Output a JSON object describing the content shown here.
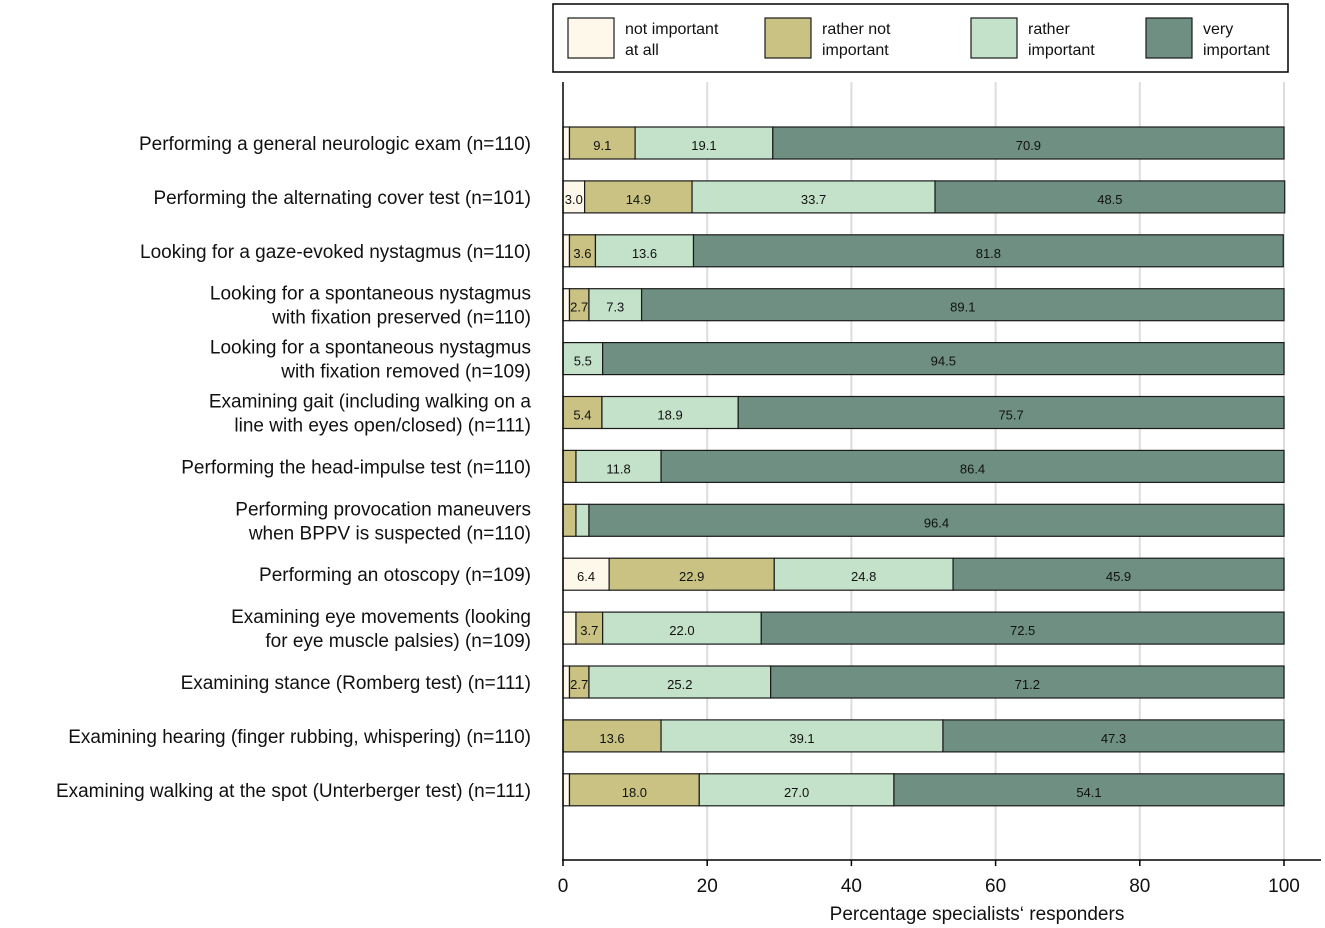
{
  "chart_data": {
    "type": "bar",
    "orientation": "horizontal-stacked",
    "xlabel": "Percentage specialists‘ responders",
    "xlim": [
      0,
      100
    ],
    "xticks": [
      0,
      20,
      40,
      60,
      80,
      100
    ],
    "grid": true,
    "legend_position": "top",
    "series": [
      {
        "name": "not important at all",
        "legend_lines": [
          "not important",
          "at all"
        ],
        "color": "#fdf8ea"
      },
      {
        "name": "rather not important",
        "legend_lines": [
          "rather not",
          "important"
        ],
        "color": "#c9c283"
      },
      {
        "name": "rather important",
        "legend_lines": [
          "rather",
          "important"
        ],
        "color": "#c3e2c9"
      },
      {
        "name": "very important",
        "legend_lines": [
          "very",
          "important"
        ],
        "color": "#6e8f82"
      }
    ],
    "categories": [
      {
        "lines": [
          "Performing a general neurologic exam (n=110)"
        ],
        "values": [
          0.9,
          9.1,
          19.1,
          70.9
        ],
        "labels": [
          "",
          "9.1",
          "19.1",
          "70.9"
        ]
      },
      {
        "lines": [
          "Performing the alternating cover test (n=101)"
        ],
        "values": [
          3.0,
          14.9,
          33.7,
          48.5
        ],
        "labels": [
          "3.0",
          "14.9",
          "33.7",
          "48.5"
        ]
      },
      {
        "lines": [
          "Looking for a gaze-evoked nystagmus (n=110)"
        ],
        "values": [
          0.9,
          3.6,
          13.6,
          81.8
        ],
        "labels": [
          "",
          "3.6",
          "13.6",
          "81.8"
        ]
      },
      {
        "lines": [
          "Looking for a spontaneous nystagmus ",
          "with fixation preserved (n=110)"
        ],
        "values": [
          0.9,
          2.7,
          7.3,
          89.1
        ],
        "labels": [
          "",
          "2.7",
          "7.3",
          "89.1"
        ]
      },
      {
        "lines": [
          "Looking for a spontaneous nystagmus",
          "with fixation removed (n=109)"
        ],
        "values": [
          0,
          0,
          5.5,
          94.5
        ],
        "labels": [
          "",
          "",
          "5.5",
          "94.5"
        ]
      },
      {
        "lines": [
          "Examining gait (including walking on a",
          "line with eyes open/closed) (n=111)"
        ],
        "values": [
          0,
          5.4,
          18.9,
          75.7
        ],
        "labels": [
          "",
          "5.4",
          "18.9",
          "75.7"
        ]
      },
      {
        "lines": [
          "Performing the head-impulse test (n=110)"
        ],
        "values": [
          0,
          1.8,
          11.8,
          86.4
        ],
        "labels": [
          "",
          "",
          "11.8",
          "86.4"
        ]
      },
      {
        "lines": [
          "Performing provocation maneuvers",
          "when BPPV is suspected (n=110)"
        ],
        "values": [
          0,
          1.8,
          1.8,
          96.4
        ],
        "labels": [
          "",
          "",
          "",
          "96.4"
        ]
      },
      {
        "lines": [
          "Performing an otoscopy (n=109)"
        ],
        "values": [
          6.4,
          22.9,
          24.8,
          45.9
        ],
        "labels": [
          "6.4",
          "22.9",
          "24.8",
          "45.9"
        ]
      },
      {
        "lines": [
          "Examining eye movements (looking",
          "for eye muscle palsies) (n=109)"
        ],
        "values": [
          1.8,
          3.7,
          22.0,
          72.5
        ],
        "labels": [
          "",
          "3.7",
          "22.0",
          "72.5"
        ]
      },
      {
        "lines": [
          "Examining stance (Romberg test) (n=111)"
        ],
        "values": [
          0.9,
          2.7,
          25.2,
          71.2
        ],
        "labels": [
          "",
          "2.7",
          "25.2",
          "71.2"
        ]
      },
      {
        "lines": [
          "Examining hearing (finger rubbing, whispering) (n=110)"
        ],
        "values": [
          0,
          13.6,
          39.1,
          47.3
        ],
        "labels": [
          "",
          "13.6",
          "39.1",
          "47.3"
        ]
      },
      {
        "lines": [
          "Examining walking at the spot (Unterberger test) (n=111)"
        ],
        "values": [
          0.9,
          18.0,
          27.0,
          54.1
        ],
        "labels": [
          "",
          "18.0",
          "27.0",
          "54.1"
        ]
      }
    ]
  }
}
